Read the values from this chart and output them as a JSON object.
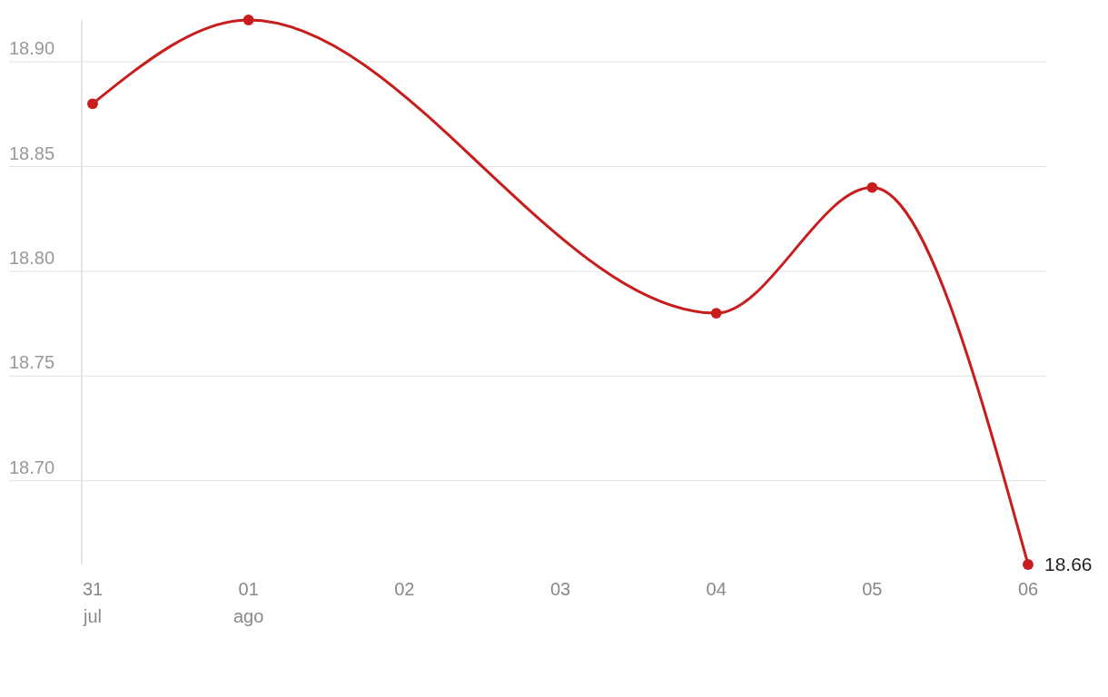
{
  "chart_data": {
    "type": "line",
    "x": [
      "--07-31",
      "--08-01",
      "--08-04",
      "--08-05",
      "--08-06"
    ],
    "series": [
      {
        "color": "#c71e1d",
        "values": [
          18.88,
          18.92,
          18.78,
          18.84,
          18.66
        ],
        "value_labels": [
          null,
          null,
          null,
          null,
          "18.66"
        ]
      }
    ],
    "xlim": [
      "--07-31",
      "--08-06"
    ],
    "xticks": [
      {
        "value": "--07-31",
        "label": "31\njul"
      },
      {
        "value": "--08-01",
        "label": "01\nago"
      },
      {
        "value": "--08-02",
        "label": "02"
      },
      {
        "value": "--08-03",
        "label": "03"
      },
      {
        "value": "--08-04",
        "label": "04"
      },
      {
        "value": "--08-05",
        "label": "05"
      },
      {
        "value": "--08-06",
        "label": "06"
      }
    ],
    "ylim": [
      18.66,
      18.92
    ],
    "yticks": [
      {
        "value": 18.7,
        "label": "18.70"
      },
      18.75,
      {
        "value": 18.8,
        "label": "18.80"
      },
      18.85,
      {
        "value": 18.9,
        "label": "18.90"
      }
    ],
    "grid": "y",
    "marker": "circle",
    "line_style": "solid"
  }
}
